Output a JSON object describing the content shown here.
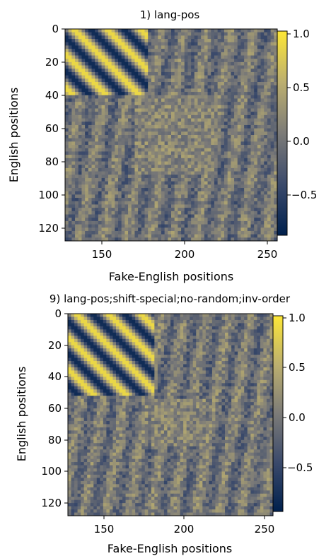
{
  "chart_data": [
    {
      "type": "heatmap",
      "title": "1) lang-pos",
      "xlabel": "Fake-English positions",
      "ylabel": "English positions",
      "xlim": [
        128,
        256
      ],
      "ylim": [
        128,
        0
      ],
      "xticks": [
        "150",
        "200",
        "250"
      ],
      "yticks": [
        "0",
        "20",
        "40",
        "60",
        "80",
        "100",
        "120"
      ],
      "colorbar": {
        "min": -0.9,
        "max": 1.0,
        "ticks": [
          "1.0",
          "0.5",
          "0.0",
          "−0.5"
        ]
      },
      "colormap": "cividis",
      "structure": {
        "diagonal_stripe_block": {
          "x": [
            128,
            178
          ],
          "y": [
            0,
            40
          ]
        },
        "bright_texture_block": {
          "x": [
            170,
            218
          ],
          "y": [
            40,
            88
          ]
        }
      }
    },
    {
      "type": "heatmap",
      "title": "9) lang-pos;shift-special;no-random;inv-order",
      "xlabel": "Fake-English positions",
      "ylabel": "English positions",
      "xlim": [
        128,
        256
      ],
      "ylim": [
        128,
        0
      ],
      "xticks": [
        "150",
        "200",
        "250"
      ],
      "yticks": [
        "0",
        "20",
        "40",
        "60",
        "80",
        "100",
        "120"
      ],
      "colorbar": {
        "min": -0.9,
        "max": 1.0,
        "ticks": [
          "1.0",
          "0.5",
          "0.0",
          "−0.5"
        ]
      },
      "colormap": "cividis",
      "structure": {
        "diagonal_stripe_block": {
          "x": [
            128,
            183
          ],
          "y": [
            0,
            52
          ]
        },
        "bright_texture_block": {
          "x": [
            180,
            215
          ],
          "y": [
            55,
            85
          ]
        }
      }
    }
  ]
}
